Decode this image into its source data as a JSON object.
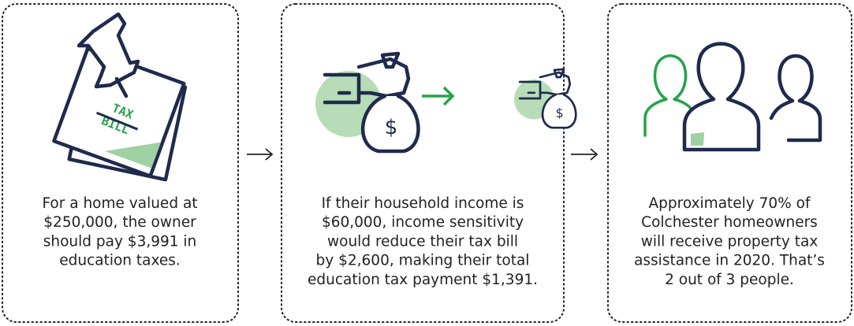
{
  "cards": [
    {
      "icon_text": [
        "TAX",
        "BILL"
      ],
      "lines": [
        "For a home valued at",
        "$250,000, the owner",
        "should pay $3,991 in",
        "education taxes."
      ]
    },
    {
      "icon_text": [
        "$",
        "$"
      ],
      "lines": [
        "If their household income is",
        "$60,000, income sensitivity",
        "would reduce their tax bill",
        "by $2,600, making their total",
        "education tax payment $1,391."
      ]
    },
    {
      "icon_text": [],
      "lines": [
        "Approximately 70% of",
        "Colchester homeowners",
        "will receive property tax",
        "assistance in 2020. That’s",
        "2 out of 3 people."
      ]
    }
  ]
}
